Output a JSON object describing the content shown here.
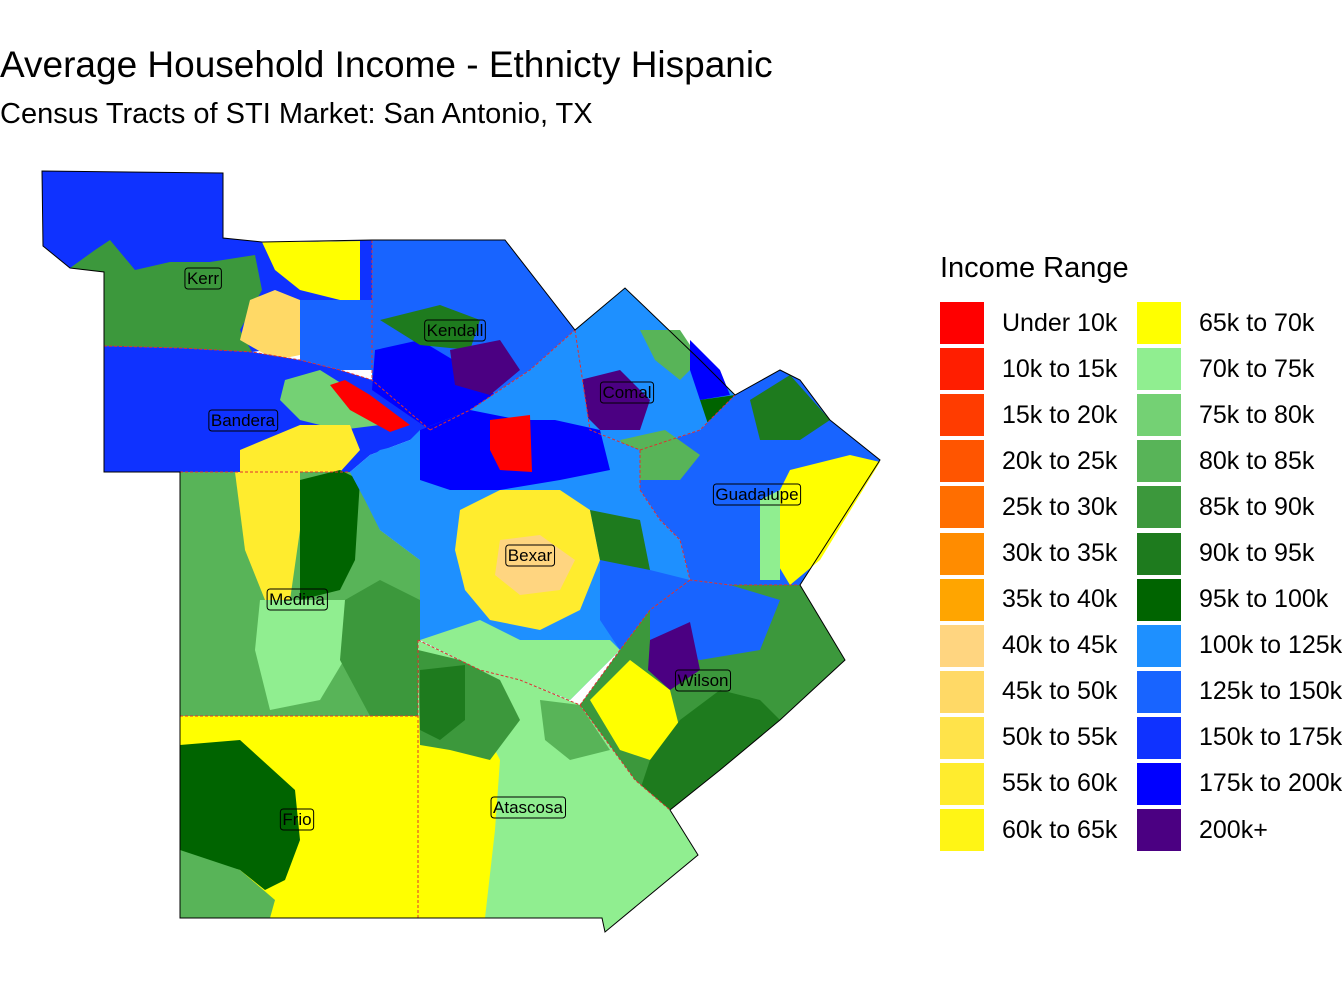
{
  "title": "Average Household Income - Ethnicty Hispanic",
  "subtitle": "Census Tracts of STI Market: San Antonio, TX",
  "legend": {
    "title": "Income Range",
    "items": [
      {
        "label": "Under 10k",
        "color": "#ff0000"
      },
      {
        "label": "10k to 15k",
        "color": "#ff1e00"
      },
      {
        "label": "15k to 20k",
        "color": "#ff3c00"
      },
      {
        "label": "20k to 25k",
        "color": "#ff5500"
      },
      {
        "label": "25k to 30k",
        "color": "#ff6e00"
      },
      {
        "label": "30k to 35k",
        "color": "#ff8c00"
      },
      {
        "label": "35k to 40k",
        "color": "#ffa500"
      },
      {
        "label": "40k to 45k",
        "color": "#ffd580"
      },
      {
        "label": "45k to 50k",
        "color": "#ffd966"
      },
      {
        "label": "50k to 55k",
        "color": "#ffe34a"
      },
      {
        "label": "55k to 60k",
        "color": "#ffec2e"
      },
      {
        "label": "60k to 65k",
        "color": "#fff515"
      },
      {
        "label": "65k to 70k",
        "color": "#ffff00"
      },
      {
        "label": "70k to 75k",
        "color": "#90ee90"
      },
      {
        "label": "75k to 80k",
        "color": "#74d174"
      },
      {
        "label": "80k to 85k",
        "color": "#58b458"
      },
      {
        "label": "85k to 90k",
        "color": "#3c983c"
      },
      {
        "label": "90k to 95k",
        "color": "#1e7b1e"
      },
      {
        "label": "95k to 100k",
        "color": "#006400"
      },
      {
        "label": "100k to 125k",
        "color": "#1e90ff"
      },
      {
        "label": "125k to 150k",
        "color": "#1864ff"
      },
      {
        "label": "150k to 175k",
        "color": "#0f32ff"
      },
      {
        "label": "175k to 200k",
        "color": "#0000ff"
      },
      {
        "label": "200k+",
        "color": "#4b0082"
      }
    ]
  },
  "counties": [
    {
      "name": "Kerr"
    },
    {
      "name": "Kendall"
    },
    {
      "name": "Comal"
    },
    {
      "name": "Bandera"
    },
    {
      "name": "Guadalupe"
    },
    {
      "name": "Bexar"
    },
    {
      "name": "Medina"
    },
    {
      "name": "Wilson"
    },
    {
      "name": "Frio"
    },
    {
      "name": "Atascosa"
    }
  ]
}
